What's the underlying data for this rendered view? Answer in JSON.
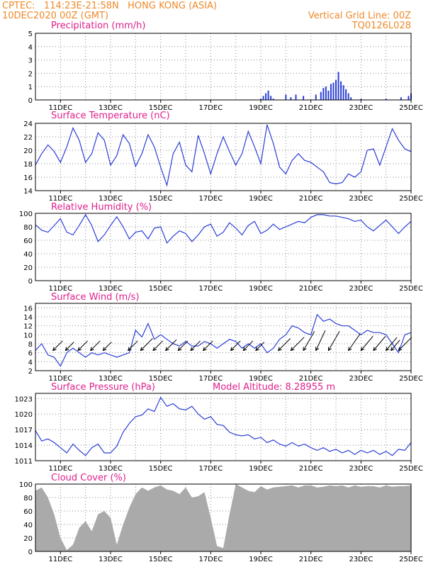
{
  "header": {
    "line1_left": "CPTEC:   114:23E-21:58N   HONG KONG (ASIA)",
    "line2_left": "10DEC2020 00Z (GMT)",
    "line1_right": "Vertical Grid Line: 00Z",
    "line2_right": "TQ0126L028"
  },
  "colors": {
    "header": "#ee8a2a",
    "title": "#e0208c",
    "series": "#2b3fd6",
    "cloud": "#aaaaaa"
  },
  "x_axis": {
    "start": "10DEC2020 00Z",
    "ticks": [
      "11DEC",
      "13DEC",
      "15DEC",
      "17DEC",
      "19DEC",
      "21DEC",
      "23DEC",
      "25DEC"
    ]
  },
  "chart_data": [
    {
      "id": "precip",
      "type": "bar",
      "title": "Precipitation (mm/h)",
      "ylim": [
        0,
        5
      ],
      "yticks": [
        0,
        1,
        2,
        3,
        4,
        5
      ],
      "points": [
        {
          "t": 9.0,
          "v": 0.1
        },
        {
          "t": 9.1,
          "v": 0.3
        },
        {
          "t": 9.2,
          "v": 0.5
        },
        {
          "t": 9.3,
          "v": 0.7
        },
        {
          "t": 9.4,
          "v": 0.3
        },
        {
          "t": 9.5,
          "v": 0.1
        },
        {
          "t": 10.0,
          "v": 0.4
        },
        {
          "t": 10.2,
          "v": 0.2
        },
        {
          "t": 10.4,
          "v": 0.4
        },
        {
          "t": 10.7,
          "v": 0.3
        },
        {
          "t": 11.2,
          "v": 0.4
        },
        {
          "t": 11.4,
          "v": 0.6
        },
        {
          "t": 11.5,
          "v": 0.9
        },
        {
          "t": 11.6,
          "v": 1.0
        },
        {
          "t": 11.7,
          "v": 0.7
        },
        {
          "t": 11.8,
          "v": 1.2
        },
        {
          "t": 11.9,
          "v": 1.3
        },
        {
          "t": 12.0,
          "v": 1.5
        },
        {
          "t": 12.1,
          "v": 2.1
        },
        {
          "t": 12.2,
          "v": 1.4
        },
        {
          "t": 12.3,
          "v": 1.1
        },
        {
          "t": 12.4,
          "v": 0.8
        },
        {
          "t": 12.5,
          "v": 0.5
        },
        {
          "t": 12.6,
          "v": 0.2
        },
        {
          "t": 13.0,
          "v": 0.1
        },
        {
          "t": 14.0,
          "v": 0.1
        },
        {
          "t": 14.6,
          "v": 0.2
        },
        {
          "t": 14.9,
          "v": 0.3
        },
        {
          "t": 15.0,
          "v": 0.5
        }
      ]
    },
    {
      "id": "temp",
      "type": "line",
      "title": "Surface Temperature (nC)",
      "ylim": [
        14,
        24
      ],
      "yticks": [
        14,
        16,
        18,
        20,
        22,
        24
      ],
      "x": [
        0,
        0.25,
        0.5,
        0.75,
        1,
        1.25,
        1.5,
        1.75,
        2,
        2.25,
        2.5,
        2.75,
        3,
        3.25,
        3.5,
        3.75,
        4,
        4.25,
        4.5,
        4.75,
        5,
        5.25,
        5.5,
        5.75,
        6,
        6.25,
        6.5,
        6.75,
        7,
        7.25,
        7.5,
        7.75,
        8,
        8.25,
        8.5,
        8.75,
        9,
        9.25,
        9.5,
        9.75,
        10,
        10.25,
        10.5,
        10.75,
        11,
        11.25,
        11.5,
        11.75,
        12,
        12.25,
        12.5,
        12.75,
        13,
        13.25,
        13.5,
        13.75,
        14,
        14.25,
        14.5,
        14.75,
        15
      ],
      "y": [
        17.8,
        19.5,
        20.8,
        19.8,
        18.2,
        20.5,
        23.3,
        21.5,
        18.2,
        19.5,
        22.6,
        21.5,
        17.8,
        19.2,
        22.3,
        21.0,
        17.6,
        19.5,
        22.3,
        20.5,
        17.5,
        14.8,
        19.5,
        21.2,
        17.8,
        16.8,
        22.2,
        19.5,
        16.5,
        19.5,
        22.0,
        19.8,
        17.8,
        19.5,
        22.8,
        20.5,
        18.0,
        23.8,
        21.0,
        17.5,
        16.5,
        18.5,
        19.5,
        18.5,
        18.2,
        17.5,
        16.8,
        15.2,
        15.0,
        15.2,
        16.5,
        16.0,
        16.8,
        20.0,
        20.2,
        17.8,
        20.5,
        23.2,
        21.5,
        20.2,
        19.8
      ]
    },
    {
      "id": "rh",
      "type": "line",
      "title": "Relative Humidity (%)",
      "ylim": [
        0,
        100
      ],
      "yticks": [
        0,
        20,
        40,
        60,
        80,
        100
      ],
      "x": [
        0,
        0.25,
        0.5,
        0.75,
        1,
        1.25,
        1.5,
        1.75,
        2,
        2.25,
        2.5,
        2.75,
        3,
        3.25,
        3.5,
        3.75,
        4,
        4.25,
        4.5,
        4.75,
        5,
        5.25,
        5.5,
        5.75,
        6,
        6.25,
        6.5,
        6.75,
        7,
        7.25,
        7.5,
        7.75,
        8,
        8.25,
        8.5,
        8.75,
        9,
        9.25,
        9.5,
        9.75,
        10,
        10.25,
        10.5,
        10.75,
        11,
        11.25,
        11.5,
        11.75,
        12,
        12.25,
        12.5,
        12.75,
        13,
        13.25,
        13.5,
        13.75,
        14,
        14.25,
        14.5,
        14.75,
        15
      ],
      "y": [
        83,
        75,
        72,
        82,
        92,
        72,
        68,
        82,
        98,
        82,
        58,
        68,
        82,
        95,
        80,
        62,
        72,
        74,
        62,
        78,
        80,
        56,
        66,
        74,
        70,
        58,
        68,
        80,
        84,
        66,
        72,
        86,
        78,
        68,
        82,
        88,
        70,
        75,
        84,
        76,
        80,
        84,
        88,
        86,
        94,
        98,
        98,
        96,
        96,
        94,
        92,
        88,
        90,
        80,
        74,
        82,
        90,
        80,
        70,
        80,
        88
      ]
    },
    {
      "id": "wind",
      "type": "line",
      "title": "Surface Wind (m/s)",
      "ylim": [
        2,
        17
      ],
      "yticks": [
        2,
        4,
        6,
        8,
        10,
        12,
        14,
        16
      ],
      "x": [
        0,
        0.25,
        0.5,
        0.75,
        1,
        1.25,
        1.5,
        1.75,
        2,
        2.25,
        2.5,
        2.75,
        3,
        3.25,
        3.5,
        3.75,
        4,
        4.25,
        4.5,
        4.75,
        5,
        5.25,
        5.5,
        5.75,
        6,
        6.25,
        6.5,
        6.75,
        7,
        7.25,
        7.5,
        7.75,
        8,
        8.25,
        8.5,
        8.75,
        9,
        9.25,
        9.5,
        9.75,
        10,
        10.25,
        10.5,
        10.75,
        11,
        11.25,
        11.5,
        11.75,
        12,
        12.25,
        12.5,
        12.75,
        13,
        13.25,
        13.5,
        13.75,
        14,
        14.25,
        14.5,
        14.75,
        15
      ],
      "y": [
        6.5,
        8,
        5.5,
        5,
        3,
        6,
        7,
        6,
        5,
        6,
        5.5,
        6,
        5.5,
        5,
        5.5,
        6,
        11,
        9.5,
        12.5,
        9,
        10,
        9,
        8,
        7.5,
        8.5,
        7.5,
        7.5,
        8.5,
        8,
        7,
        8,
        9,
        8.5,
        7,
        8,
        7,
        8,
        6,
        7,
        9,
        10,
        12,
        11.5,
        10.5,
        10,
        14.5,
        13,
        13.5,
        12.5,
        12,
        12,
        11,
        10,
        11,
        10.5,
        10.5,
        10,
        8,
        6,
        10,
        10.5
      ],
      "arrows": [
        {
          "t": 0.7,
          "speed": 8,
          "dir": 45
        },
        {
          "t": 1.2,
          "speed": 7,
          "dir": 45
        },
        {
          "t": 1.7,
          "speed": 8,
          "dir": 45
        },
        {
          "t": 2.2,
          "speed": 8,
          "dir": 45
        },
        {
          "t": 2.7,
          "speed": 7,
          "dir": 45
        },
        {
          "t": 3.7,
          "speed": 8,
          "dir": 45
        },
        {
          "t": 4.2,
          "speed": 10,
          "dir": 45
        },
        {
          "t": 4.7,
          "speed": 8,
          "dir": 45
        },
        {
          "t": 5.2,
          "speed": 9,
          "dir": 45
        },
        {
          "t": 5.7,
          "speed": 8,
          "dir": 45
        },
        {
          "t": 6.2,
          "speed": 8,
          "dir": 45
        },
        {
          "t": 6.7,
          "speed": 8,
          "dir": 45
        },
        {
          "t": 7.8,
          "speed": 8,
          "dir": 45
        },
        {
          "t": 8.3,
          "speed": 8,
          "dir": 45
        },
        {
          "t": 8.8,
          "speed": 7,
          "dir": 45
        },
        {
          "t": 9.7,
          "speed": 10,
          "dir": 45
        },
        {
          "t": 10.2,
          "speed": 11,
          "dir": 45
        },
        {
          "t": 10.7,
          "speed": 13,
          "dir": 30
        },
        {
          "t": 11.2,
          "speed": 13,
          "dir": 25
        },
        {
          "t": 11.7,
          "speed": 13,
          "dir": 30
        },
        {
          "t": 12.5,
          "speed": 12,
          "dir": 35
        },
        {
          "t": 13.0,
          "speed": 11,
          "dir": 40
        },
        {
          "t": 13.5,
          "speed": 11,
          "dir": 40
        },
        {
          "t": 14.0,
          "speed": 10,
          "dir": 40
        },
        {
          "t": 14.2,
          "speed": 8,
          "dir": 40
        },
        {
          "t": 14.5,
          "speed": 11,
          "dir": 45
        }
      ]
    },
    {
      "id": "pres",
      "type": "line",
      "title": "Surface Pressure (hPa)",
      "annotation": "Model Altitude: 8.28955 m",
      "ylim": [
        1011,
        1024
      ],
      "yticks": [
        1011,
        1014,
        1017,
        1020,
        1023
      ],
      "x": [
        0,
        0.25,
        0.5,
        0.75,
        1,
        1.25,
        1.5,
        1.75,
        2,
        2.25,
        2.5,
        2.75,
        3,
        3.25,
        3.5,
        3.75,
        4,
        4.25,
        4.5,
        4.75,
        5,
        5.25,
        5.5,
        5.75,
        6,
        6.25,
        6.5,
        6.75,
        7,
        7.25,
        7.5,
        7.75,
        8,
        8.25,
        8.5,
        8.75,
        9,
        9.25,
        9.5,
        9.75,
        10,
        10.25,
        10.5,
        10.75,
        11,
        11.25,
        11.5,
        11.75,
        12,
        12.25,
        12.5,
        12.75,
        13,
        13.25,
        13.5,
        13.75,
        14,
        14.25,
        14.5,
        14.75,
        15
      ],
      "y": [
        1016.8,
        1014.8,
        1015.2,
        1014.5,
        1013.5,
        1012.5,
        1014.2,
        1013.0,
        1012.0,
        1013.5,
        1014.2,
        1012.5,
        1012.5,
        1013.8,
        1016.5,
        1018.2,
        1019.5,
        1019.8,
        1021.0,
        1020.5,
        1023.2,
        1021.5,
        1022.0,
        1021.0,
        1020.8,
        1021.5,
        1020.0,
        1019.0,
        1019.5,
        1018.0,
        1017.8,
        1016.5,
        1016.0,
        1015.8,
        1016.0,
        1015.2,
        1015.5,
        1014.5,
        1015.0,
        1014.2,
        1013.8,
        1014.5,
        1013.8,
        1014.2,
        1013.5,
        1013.0,
        1013.5,
        1012.8,
        1013.2,
        1012.5,
        1013.0,
        1012.2,
        1013.0,
        1012.5,
        1013.0,
        1012.2,
        1012.8,
        1012.0,
        1013.2,
        1013.0,
        1014.5
      ]
    },
    {
      "id": "cloud",
      "type": "area",
      "title": "Cloud Cover (%)",
      "ylim": [
        0,
        100
      ],
      "yticks": [
        0,
        20,
        40,
        60,
        80,
        100
      ],
      "x": [
        0,
        0.25,
        0.5,
        0.75,
        1,
        1.25,
        1.5,
        1.75,
        2,
        2.25,
        2.5,
        2.75,
        3,
        3.25,
        3.5,
        3.75,
        4,
        4.25,
        4.5,
        4.75,
        5,
        5.25,
        5.5,
        5.75,
        6,
        6.25,
        6.5,
        6.75,
        7,
        7.25,
        7.5,
        7.75,
        8,
        8.25,
        8.5,
        8.75,
        9,
        9.25,
        9.5,
        9.75,
        10,
        10.25,
        10.5,
        10.75,
        11,
        11.25,
        11.5,
        11.75,
        12,
        12.25,
        12.5,
        12.75,
        13,
        13.25,
        13.5,
        13.75,
        14,
        14.25,
        14.5,
        14.75,
        15
      ],
      "y": [
        90,
        95,
        80,
        55,
        20,
        2,
        10,
        35,
        45,
        30,
        55,
        60,
        50,
        10,
        40,
        65,
        85,
        95,
        90,
        95,
        98,
        92,
        90,
        85,
        95,
        80,
        82,
        88,
        50,
        8,
        5,
        55,
        100,
        95,
        90,
        88,
        97,
        92,
        95,
        96,
        97,
        98,
        95,
        98,
        98,
        95,
        96,
        98,
        97,
        98,
        95,
        98,
        96,
        97,
        97,
        95,
        98,
        96,
        97,
        97,
        98
      ]
    }
  ]
}
